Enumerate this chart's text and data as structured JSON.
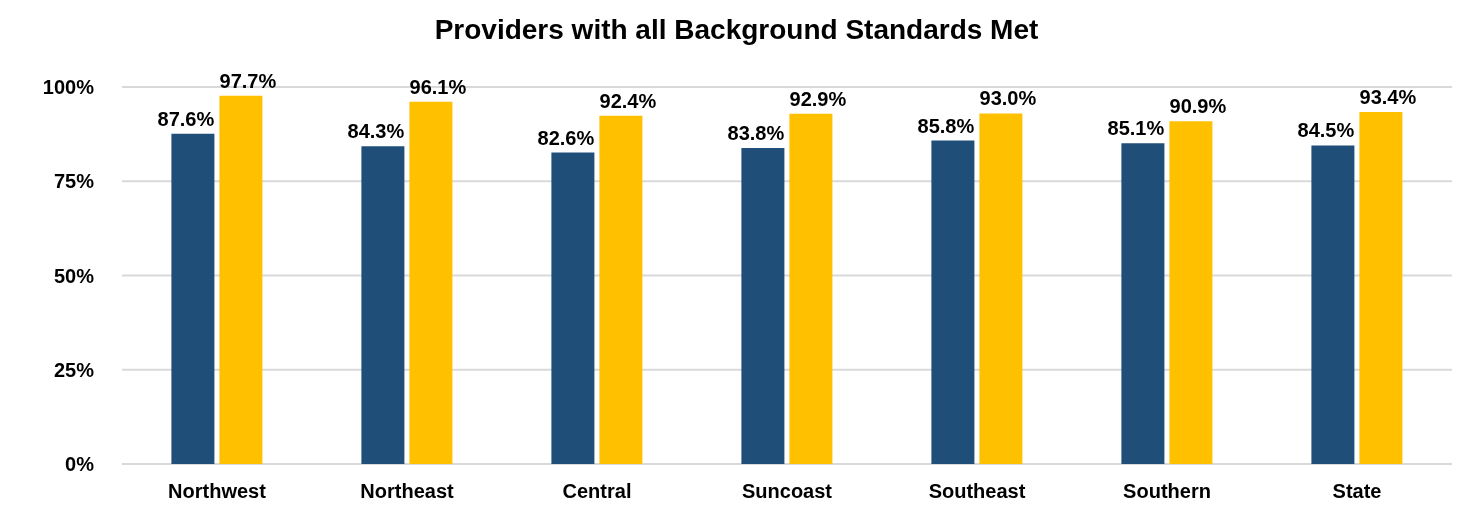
{
  "chart_data": {
    "type": "bar",
    "title": "Providers with all Background Standards Met",
    "categories": [
      "Northwest",
      "Northeast",
      "Central",
      "Suncoast",
      "Southeast",
      "Southern",
      "State"
    ],
    "series": [
      {
        "color": "#1f4e79",
        "values": [
          87.6,
          84.3,
          82.6,
          83.8,
          85.8,
          85.1,
          84.5
        ],
        "value_labels": [
          "87.6%",
          "84.3%",
          "82.6%",
          "83.8%",
          "85.8%",
          "85.1%",
          "84.5%"
        ]
      },
      {
        "color": "#ffc000",
        "values": [
          97.7,
          96.1,
          92.4,
          92.9,
          93.0,
          90.9,
          93.4
        ],
        "value_labels": [
          "97.7%",
          "96.1%",
          "92.4%",
          "92.9%",
          "93.0%",
          "90.9%",
          "93.4%"
        ]
      }
    ],
    "ylim": [
      0,
      100
    ],
    "yticks": [
      {
        "value": 0,
        "label": "0%"
      },
      {
        "value": 25,
        "label": "25%"
      },
      {
        "value": 50,
        "label": "50%"
      },
      {
        "value": 75,
        "label": "75%"
      },
      {
        "value": 100,
        "label": "100%"
      }
    ],
    "grid": "y",
    "legend": false
  }
}
